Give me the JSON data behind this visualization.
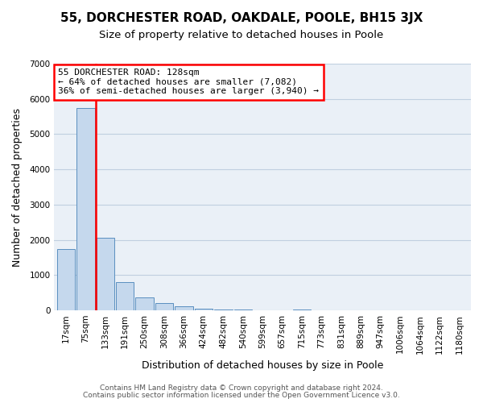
{
  "title": "55, DORCHESTER ROAD, OAKDALE, POOLE, BH15 3JX",
  "subtitle": "Size of property relative to detached houses in Poole",
  "xlabel": "Distribution of detached houses by size in Poole",
  "ylabel": "Number of detached properties",
  "footnote1": "Contains HM Land Registry data © Crown copyright and database right 2024.",
  "footnote2": "Contains public sector information licensed under the Open Government Licence v3.0.",
  "bin_labels": [
    "17sqm",
    "75sqm",
    "133sqm",
    "191sqm",
    "250sqm",
    "308sqm",
    "366sqm",
    "424sqm",
    "482sqm",
    "540sqm",
    "599sqm",
    "657sqm",
    "715sqm",
    "773sqm",
    "831sqm",
    "889sqm",
    "947sqm",
    "1006sqm",
    "1064sqm",
    "1122sqm",
    "1180sqm"
  ],
  "bar_values": [
    1750,
    5750,
    2070,
    800,
    370,
    210,
    105,
    55,
    30,
    15,
    5,
    5,
    30,
    5,
    5,
    5,
    5,
    5,
    5,
    5,
    5
  ],
  "bar_color": "#c5d8ed",
  "bar_edge_color": "#5a8fc0",
  "property_line_color": "red",
  "property_line_bin": 2,
  "annotation_line1": "55 DORCHESTER ROAD: 128sqm",
  "annotation_line2": "← 64% of detached houses are smaller (7,082)",
  "annotation_line3": "36% of semi-detached houses are larger (3,940) →",
  "annotation_box_edgecolor": "red",
  "ylim": [
    0,
    7000
  ],
  "yticks": [
    0,
    1000,
    2000,
    3000,
    4000,
    5000,
    6000,
    7000
  ],
  "grid_color": "#c0cfe0",
  "bg_color": "#eaf0f7",
  "title_fontsize": 11,
  "subtitle_fontsize": 9.5,
  "axis_label_fontsize": 9,
  "tick_fontsize": 7.5,
  "footnote_fontsize": 6.5
}
